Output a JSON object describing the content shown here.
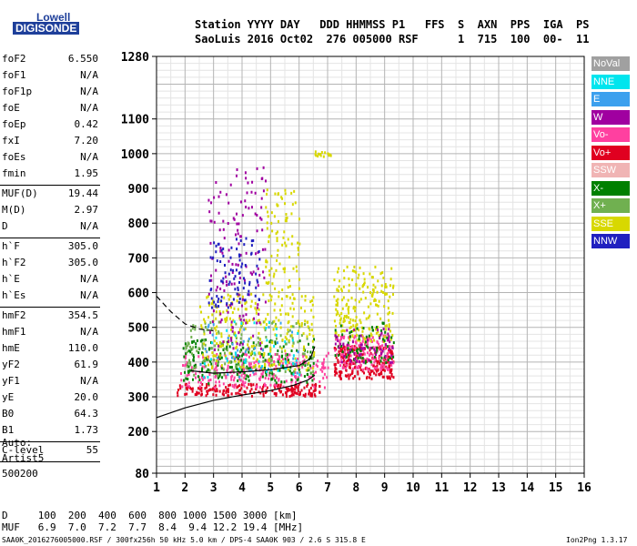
{
  "logo": {
    "line1": "Lowell",
    "line2": "DIGISONDE"
  },
  "header": {
    "line1": "Station YYYY DAY   DDD HHMMSS P1   FFS  S  AXN  PPS  IGA  PS",
    "line2": "SaoLuis 2016 Oct02  276 005000 RSF      1  715  100  00-  11"
  },
  "params": [
    {
      "group": [
        {
          "name": "foF2",
          "value": "6.550"
        },
        {
          "name": "foF1",
          "value": "N/A"
        },
        {
          "name": "foF1p",
          "value": "N/A"
        },
        {
          "name": "foE",
          "value": "N/A"
        },
        {
          "name": "foEp",
          "value": "0.42"
        },
        {
          "name": "fxI",
          "value": "7.20"
        },
        {
          "name": "foEs",
          "value": "N/A"
        },
        {
          "name": "fmin",
          "value": "1.95"
        }
      ]
    },
    {
      "group": [
        {
          "name": "MUF(D)",
          "value": "19.44"
        },
        {
          "name": "M(D)",
          "value": "2.97"
        },
        {
          "name": "D",
          "value": "N/A"
        }
      ]
    },
    {
      "group": [
        {
          "name": "h`F",
          "value": "305.0"
        },
        {
          "name": "h`F2",
          "value": "305.0"
        },
        {
          "name": "h`E",
          "value": "N/A"
        },
        {
          "name": "h`Es",
          "value": "N/A"
        }
      ]
    },
    {
      "group": [
        {
          "name": "hmF2",
          "value": "354.5"
        },
        {
          "name": "hmF1",
          "value": "N/A"
        },
        {
          "name": "hmE",
          "value": "110.0"
        },
        {
          "name": "yF2",
          "value": "61.9"
        },
        {
          "name": "yF1",
          "value": "N/A"
        },
        {
          "name": "yE",
          "value": "20.0"
        },
        {
          "name": "B0",
          "value": "64.3"
        },
        {
          "name": "B1",
          "value": "1.73"
        }
      ]
    },
    {
      "group": [
        {
          "name": "C-level",
          "value": "55"
        }
      ]
    }
  ],
  "autoscaling": [
    "Auto:",
    "Artist5",
    "500200"
  ],
  "legend": [
    {
      "label": "NoVal",
      "color": "#a0a0a0"
    },
    {
      "label": "NNE",
      "color": "#00e5ee"
    },
    {
      "label": "E",
      "color": "#3ca0ee"
    },
    {
      "label": "W",
      "color": "#a000a0"
    },
    {
      "label": "Vo-",
      "color": "#ff40a0"
    },
    {
      "label": "Vo+",
      "color": "#e00020"
    },
    {
      "label": "SSW",
      "color": "#f0b4b4"
    },
    {
      "label": "X-",
      "color": "#008000"
    },
    {
      "label": "X+",
      "color": "#70b050"
    },
    {
      "label": "SSE",
      "color": "#d8d800"
    },
    {
      "label": "NNW",
      "color": "#2020c0"
    }
  ],
  "bottom": {
    "d_line": "D     100  200  400  600  800 1000 1500 3000 [km]",
    "muf_line": "MUF   6.9  7.0  7.2  7.7  8.4  9.4 12.2 19.4 [MHz]",
    "footer_left": "SAA0K_2016276005000.RSF / 300fx256h 50 kHz 5.0 km / DPS-4 SAA0K 903 / 2.6 S 315.8 E",
    "footer_right": "Ion2Png 1.3.17"
  },
  "chart_data": {
    "type": "scatter",
    "xlim": [
      1,
      16
    ],
    "ylim": [
      80,
      1280
    ],
    "x_ticks": [
      "1",
      "2",
      "3",
      "4",
      "5",
      "6",
      "7",
      "8",
      "9",
      "10",
      "11",
      "12",
      "13",
      "14",
      "15",
      "16"
    ],
    "y_ticks": [
      {
        "value": 80,
        "label": "80"
      },
      {
        "value": 200,
        "label": "200"
      },
      {
        "value": 300,
        "label": "300"
      },
      {
        "value": 400,
        "label": "400"
      },
      {
        "value": 500,
        "label": "500"
      },
      {
        "value": 600,
        "label": "600"
      },
      {
        "value": 700,
        "label": "700"
      },
      {
        "value": 800,
        "label": "800"
      },
      {
        "value": 900,
        "label": "900"
      },
      {
        "value": 1000,
        "label": "1000"
      },
      {
        "value": 1100,
        "label": "1100"
      },
      {
        "value": 1280,
        "label": "1280"
      }
    ],
    "grid": true,
    "legend_position": "right",
    "clusters": [
      {
        "series": "Vo+",
        "x": [
          1.7,
          6.7
        ],
        "y": [
          305,
          340
        ],
        "density": 200
      },
      {
        "series": "Vo-",
        "x": [
          1.8,
          7.0
        ],
        "y": [
          330,
          430
        ],
        "density": 260
      },
      {
        "series": "X-",
        "x": [
          1.9,
          6.5
        ],
        "y": [
          340,
          470
        ],
        "density": 200
      },
      {
        "series": "X+",
        "x": [
          2.0,
          6.5
        ],
        "y": [
          360,
          520
        ],
        "density": 160
      },
      {
        "series": "SSE",
        "x": [
          2.5,
          6.5
        ],
        "y": [
          380,
          600
        ],
        "density": 260
      },
      {
        "series": "W",
        "x": [
          2.8,
          4.8
        ],
        "y": [
          420,
          980
        ],
        "density": 150
      },
      {
        "series": "NNW",
        "x": [
          2.8,
          4.6
        ],
        "y": [
          560,
          760
        ],
        "density": 90
      },
      {
        "series": "NNE",
        "x": [
          2.5,
          6.0
        ],
        "y": [
          360,
          520
        ],
        "density": 45
      },
      {
        "series": "E",
        "x": [
          2.5,
          6.0
        ],
        "y": [
          360,
          520
        ],
        "density": 35
      },
      {
        "series": "SSE",
        "x": [
          4.8,
          6.0
        ],
        "y": [
          600,
          900
        ],
        "density": 90
      },
      {
        "series": "Vo+",
        "x": [
          7.2,
          9.3
        ],
        "y": [
          355,
          450
        ],
        "density": 230
      },
      {
        "series": "Vo-",
        "x": [
          7.2,
          9.3
        ],
        "y": [
          380,
          480
        ],
        "density": 150
      },
      {
        "series": "SSE",
        "x": [
          7.2,
          9.3
        ],
        "y": [
          460,
          680
        ],
        "density": 200
      },
      {
        "series": "X-",
        "x": [
          7.2,
          9.3
        ],
        "y": [
          400,
          520
        ],
        "density": 70
      },
      {
        "series": "W",
        "x": [
          7.2,
          9.3
        ],
        "y": [
          400,
          500
        ],
        "density": 60
      },
      {
        "series": "SSE",
        "x": [
          6.5,
          7.1
        ],
        "y": [
          995,
          1010
        ],
        "density": 15
      }
    ],
    "curves": [
      {
        "name": "profile",
        "style": "solid",
        "x": [
          1,
          2,
          3,
          4,
          5,
          5.8,
          6.3,
          6.55
        ],
        "y": [
          240,
          268,
          290,
          305,
          318,
          333,
          348,
          362
        ]
      },
      {
        "name": "F-trace",
        "style": "solid",
        "x": [
          2.2,
          3,
          4,
          5,
          6,
          6.4,
          6.55
        ],
        "y": [
          375,
          368,
          372,
          378,
          390,
          410,
          445
        ]
      },
      {
        "name": "extrapolation",
        "style": "dashed",
        "x": [
          1,
          1.5,
          2,
          2.5,
          3
        ],
        "y": [
          590,
          545,
          510,
          495,
          490
        ]
      }
    ]
  }
}
